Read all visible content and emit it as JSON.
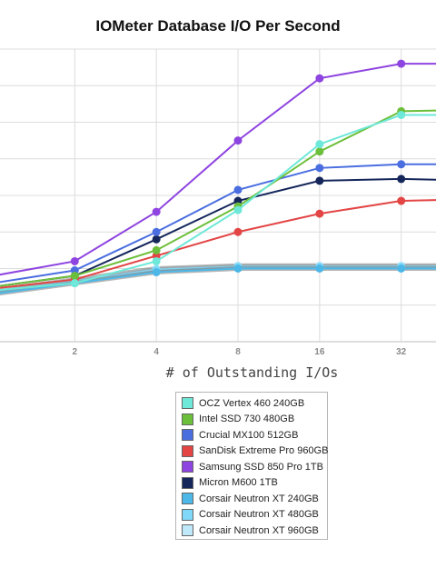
{
  "chart_data": {
    "type": "line",
    "title": "IOMeter Database I/O Per Second",
    "xlabel": "# of Outstanding I/Os",
    "ylabel": "",
    "x_scale": "log2",
    "x": [
      1,
      2,
      4,
      8,
      16,
      32,
      64
    ],
    "x_tick_labels": [
      "2",
      "4",
      "8",
      "16",
      "32"
    ],
    "x_range": [
      1.06,
      43
    ],
    "y_range": [
      0,
      8
    ],
    "y_gridlines": [
      0,
      1,
      2,
      3,
      4,
      5,
      6,
      7,
      8
    ],
    "grid": true,
    "legend_position": "bottom",
    "series": [
      {
        "name": "OCZ Vertex 460 240GB",
        "color": "#6ee8d8",
        "values": [
          1.4,
          1.6,
          2.2,
          3.6,
          5.4,
          6.2,
          6.2
        ]
      },
      {
        "name": "Intel SSD 730 480GB",
        "color": "#6cbf3a",
        "values": [
          1.5,
          1.8,
          2.5,
          3.7,
          5.2,
          6.3,
          6.35
        ]
      },
      {
        "name": "Crucial MX100 512GB",
        "color": "#4a6ee0",
        "values": [
          1.6,
          1.95,
          3.0,
          4.15,
          4.75,
          4.85,
          4.85
        ]
      },
      {
        "name": "SanDisk Extreme Pro 960GB",
        "color": "#e34545",
        "values": [
          1.45,
          1.7,
          2.35,
          3.0,
          3.5,
          3.85,
          3.9
        ]
      },
      {
        "name": "Samsung SSD 850 Pro 1TB",
        "color": "#8e44e0",
        "values": [
          1.8,
          2.2,
          3.55,
          5.5,
          7.2,
          7.6,
          7.6
        ]
      },
      {
        "name": "Micron M600 1TB",
        "color": "#14265a",
        "values": [
          1.5,
          1.8,
          2.8,
          3.85,
          4.4,
          4.45,
          4.4
        ]
      },
      {
        "name": "Corsair Neutron XT 240GB",
        "color": "#4db8e8",
        "values": [
          1.3,
          1.6,
          1.9,
          2.0,
          2.0,
          2.0,
          2.0
        ]
      },
      {
        "name": "Corsair Neutron XT 480GB",
        "color": "#80d8f8",
        "values": [
          1.35,
          1.65,
          1.97,
          2.05,
          2.05,
          2.05,
          2.05
        ]
      },
      {
        "name": "Corsair Neutron XT 960GB",
        "color": "#bfe8fb",
        "values": [
          1.4,
          1.7,
          2.0,
          2.08,
          2.08,
          2.08,
          2.08
        ]
      }
    ],
    "baseline_color": "#7a7a7a"
  }
}
